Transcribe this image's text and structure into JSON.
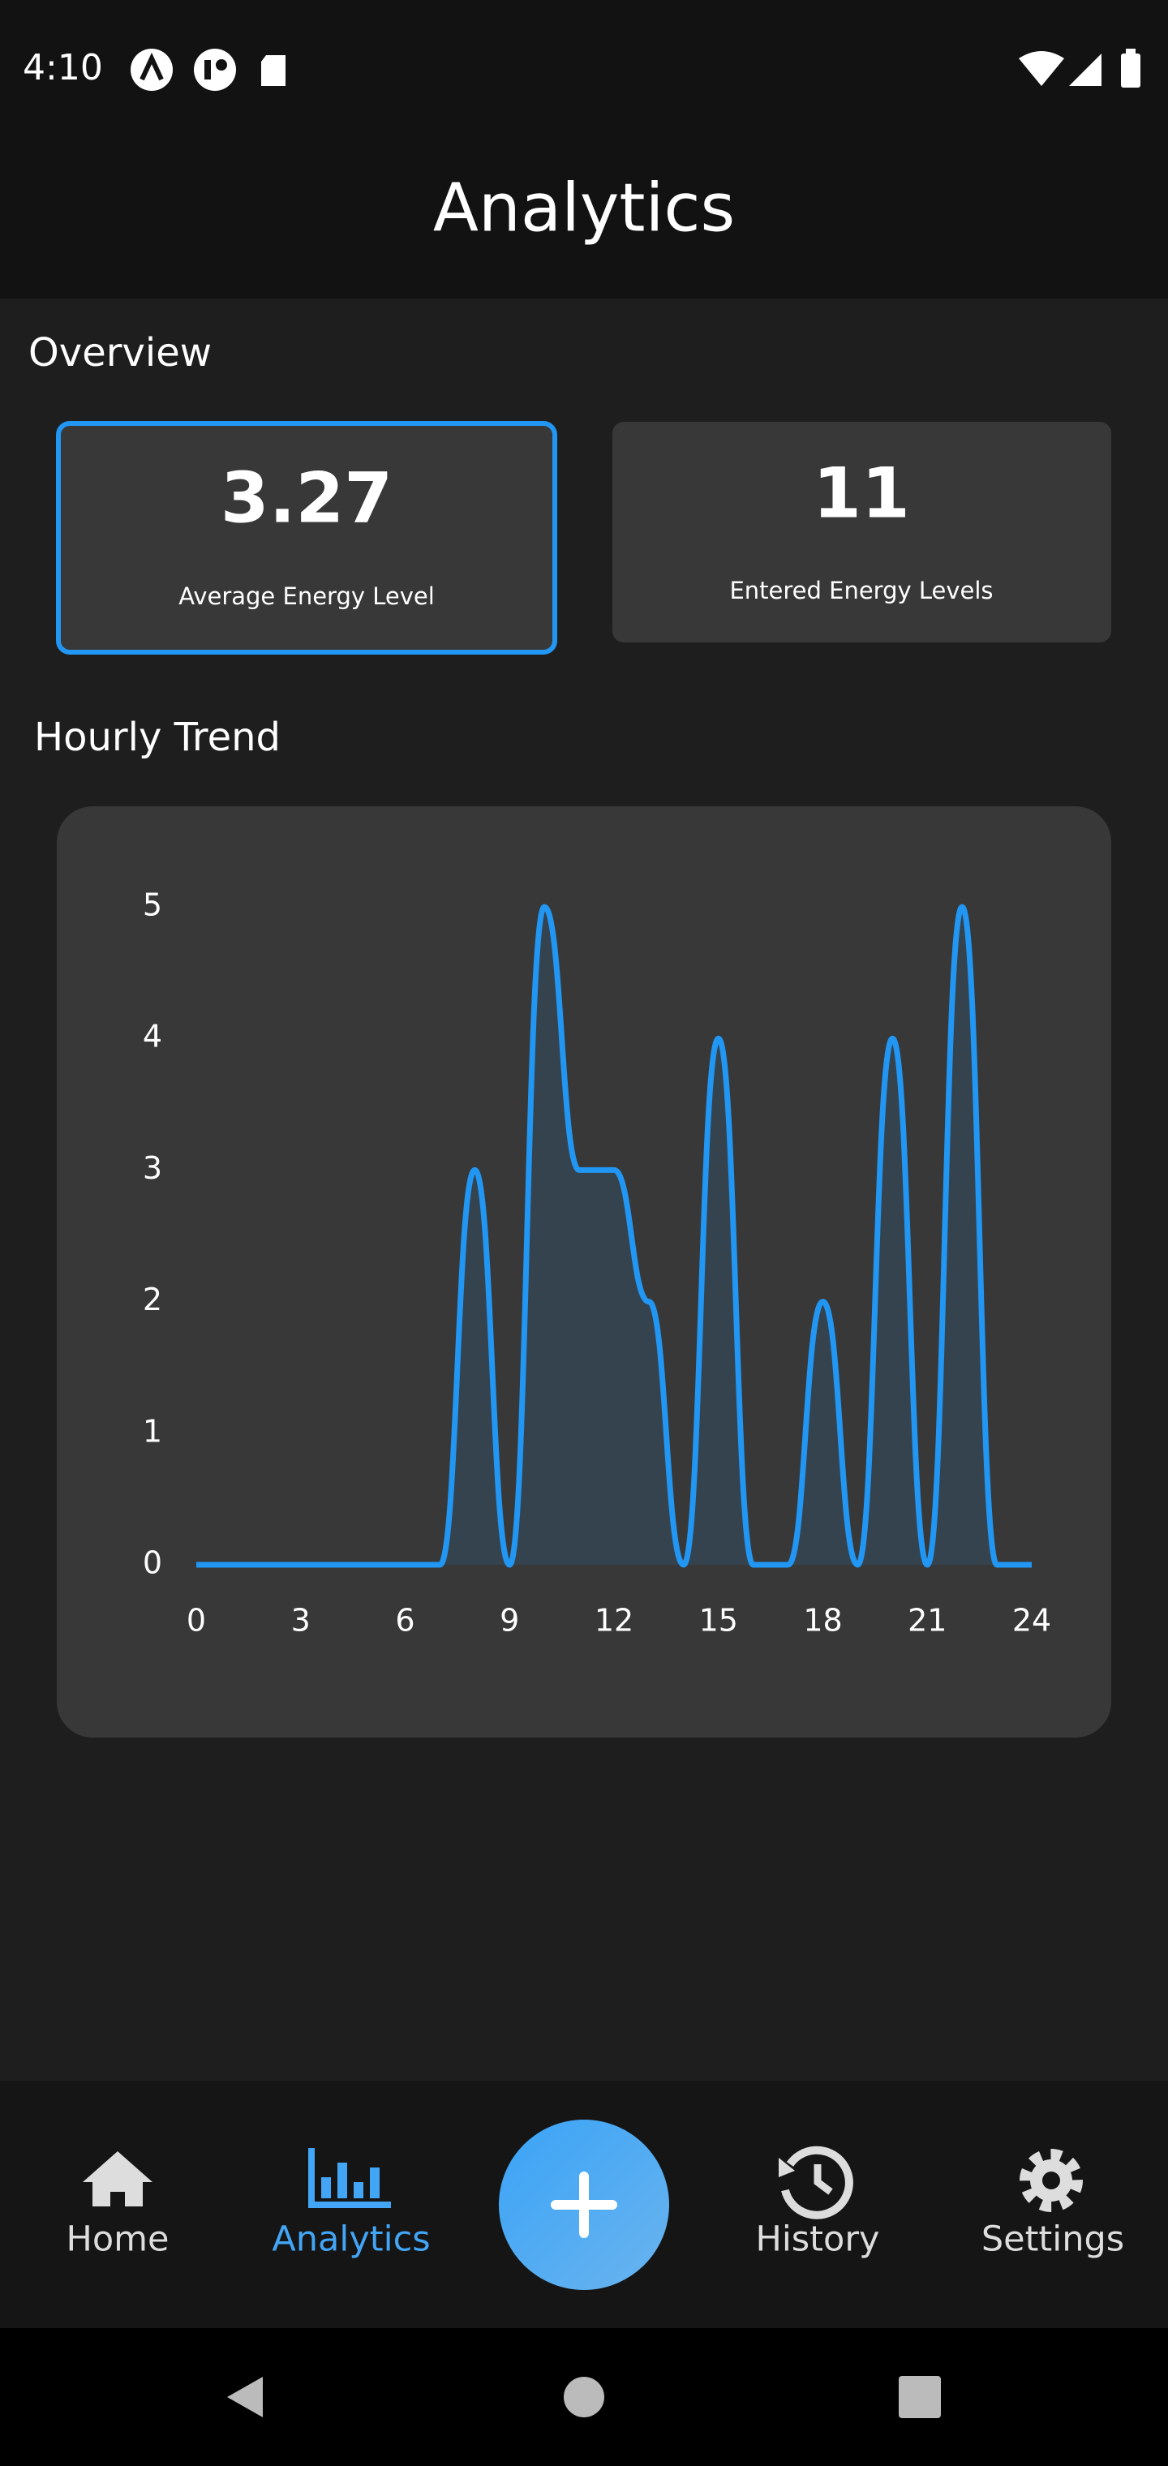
{
  "status_bar": {
    "time": "4:10"
  },
  "header": {
    "title": "Analytics"
  },
  "overview": {
    "title": "Overview",
    "cards": [
      {
        "value": 3.27,
        "label": "Average Energy Level"
      },
      {
        "value": 11,
        "label": "Entered Energy Levels"
      }
    ]
  },
  "hourly_trend": {
    "title": "Hourly Trend",
    "chart_data": {
      "type": "line",
      "x": [
        0,
        1,
        2,
        3,
        4,
        5,
        6,
        7,
        8,
        9,
        10,
        11,
        12,
        13,
        14,
        15,
        16,
        17,
        18,
        19,
        20,
        21,
        22,
        23,
        24
      ],
      "values": [
        0,
        0,
        0,
        0,
        0,
        0,
        0,
        0,
        3,
        0,
        5,
        3,
        3,
        2,
        0,
        4,
        0,
        0,
        2,
        0,
        4,
        0,
        5,
        0,
        0
      ],
      "color": "#2196f3",
      "xlim": [
        0,
        24
      ],
      "ylim": [
        0,
        5
      ],
      "xticks": [
        0,
        3,
        6,
        9,
        12,
        15,
        18,
        21,
        24
      ],
      "yticks": [
        0,
        1,
        2,
        3,
        4,
        5
      ]
    }
  },
  "nav": {
    "items": [
      "Home",
      "Analytics",
      "History",
      "Settings"
    ]
  }
}
